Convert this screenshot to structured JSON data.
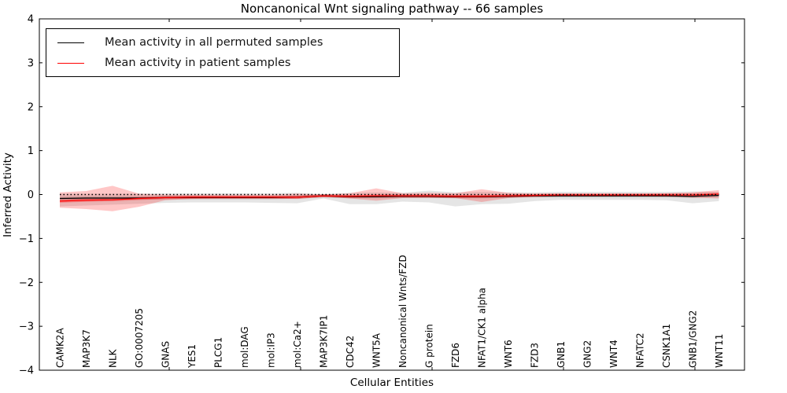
{
  "header": {
    "title": "Noncanonical Wnt signaling pathway -- 66 samples"
  },
  "axes": {
    "xlabel": "Cellular Entities",
    "ylabel": "Inferred Activity"
  },
  "legend": {
    "position": "upper left"
  },
  "chart_data": {
    "type": "line",
    "title": "Noncanonical Wnt signaling pathway -- 66 samples",
    "xlabel": "Cellular Entities",
    "ylabel": "Inferred Activity",
    "ylim": [
      -4,
      4
    ],
    "yticks": [
      4,
      3,
      2,
      1,
      0,
      -1,
      -2,
      -3,
      -4
    ],
    "grid": false,
    "legend_position": "upper left",
    "categories": [
      "CAMK2A",
      "MAP3K7",
      "NLK",
      "GO:0007205",
      "GNAS",
      "YES1",
      "PLCG1",
      "mol:DAG",
      "mol:IP3",
      "mol:Ca2+",
      "MAP3K7IP1",
      "CDC42",
      "WNT5A",
      "Noncanonical Wnts/FZD",
      "G protein",
      "FZD6",
      "NFAT1/CK1 alpha",
      "WNT6",
      "FZD3",
      "GNB1",
      "GNG2",
      "WNT4",
      "NFATC2",
      "CSNK1A1",
      "GNB1/GNG2",
      "WNT11"
    ],
    "series": [
      {
        "name": "Mean activity in all permuted samples",
        "color": "#000000",
        "band_color": "#000000",
        "values": [
          -0.09,
          -0.08,
          -0.08,
          -0.08,
          -0.07,
          -0.07,
          -0.07,
          -0.07,
          -0.07,
          -0.06,
          -0.03,
          -0.05,
          -0.05,
          -0.04,
          -0.04,
          -0.05,
          -0.05,
          -0.04,
          -0.03,
          -0.03,
          -0.03,
          -0.03,
          -0.03,
          -0.03,
          -0.04,
          -0.02
        ],
        "band_upper": [
          0.02,
          0.02,
          0.02,
          0.02,
          0.03,
          0.03,
          0.03,
          0.03,
          0.03,
          0.04,
          0.01,
          0.04,
          0.05,
          0.04,
          0.09,
          0.05,
          0.06,
          0.05,
          0.05,
          0.06,
          0.06,
          0.06,
          0.06,
          0.06,
          0.07,
          0.06
        ],
        "band_lower": [
          -0.27,
          -0.25,
          -0.23,
          -0.21,
          -0.19,
          -0.18,
          -0.18,
          -0.18,
          -0.19,
          -0.2,
          -0.09,
          -0.22,
          -0.22,
          -0.16,
          -0.18,
          -0.27,
          -0.22,
          -0.21,
          -0.15,
          -0.12,
          -0.12,
          -0.12,
          -0.12,
          -0.13,
          -0.2,
          -0.15
        ]
      },
      {
        "name": "Mean activity in patient samples",
        "color": "#ff0000",
        "band_color": "#ff0000",
        "values": [
          -0.15,
          -0.13,
          -0.12,
          -0.09,
          -0.07,
          -0.06,
          -0.06,
          -0.06,
          -0.06,
          -0.06,
          -0.03,
          -0.04,
          -0.03,
          -0.03,
          -0.03,
          -0.04,
          -0.04,
          -0.03,
          -0.02,
          -0.01,
          -0.01,
          -0.01,
          -0.01,
          -0.01,
          -0.01,
          0.01
        ],
        "band_upper": [
          0.05,
          0.08,
          0.2,
          0.02,
          0.0,
          0.0,
          0.0,
          0.0,
          0.0,
          0.02,
          0.0,
          0.03,
          0.14,
          0.03,
          0.04,
          0.03,
          0.12,
          0.04,
          0.02,
          0.02,
          0.02,
          0.02,
          0.02,
          0.03,
          0.05,
          0.1
        ],
        "band_lower": [
          -0.3,
          -0.33,
          -0.38,
          -0.28,
          -0.13,
          -0.1,
          -0.09,
          -0.09,
          -0.09,
          -0.1,
          -0.05,
          -0.09,
          -0.14,
          -0.08,
          -0.08,
          -0.08,
          -0.17,
          -0.08,
          -0.05,
          -0.04,
          -0.04,
          -0.04,
          -0.04,
          -0.05,
          -0.07,
          -0.09
        ]
      }
    ],
    "reference_line": {
      "y": 0,
      "style": "dotted",
      "color": "#000000"
    }
  }
}
